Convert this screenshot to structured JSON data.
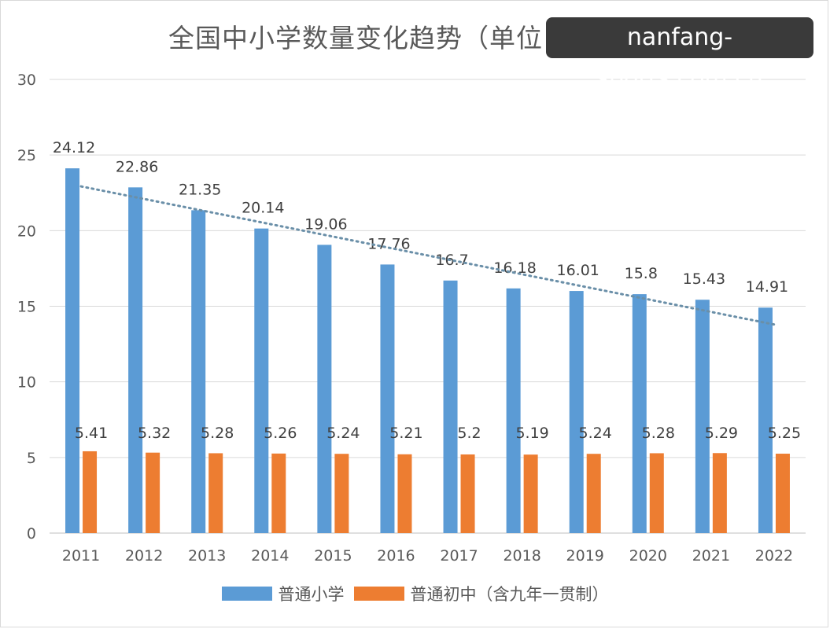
{
  "watermark": "nanfang-sports.com.cn",
  "chart_data": {
    "type": "bar",
    "title": "全国中小学数量变化趋势（单位：万所）",
    "categories": [
      "2011",
      "2012",
      "2013",
      "2014",
      "2015",
      "2016",
      "2017",
      "2018",
      "2019",
      "2020",
      "2021",
      "2022"
    ],
    "series": [
      {
        "name": "普通小学",
        "color": "#5b9bd5",
        "values": [
          24.12,
          22.86,
          21.35,
          20.14,
          19.06,
          17.76,
          16.7,
          16.18,
          16.01,
          15.8,
          15.43,
          14.91
        ],
        "labels": [
          "24.12",
          "22.86",
          "21.35",
          "20.14",
          "19.06",
          "17.76",
          "16.7",
          "16.18",
          "16.01",
          "15.8",
          "15.43",
          "14.91"
        ]
      },
      {
        "name": "普通初中（含九年一贯制）",
        "color": "#ed7d31",
        "values": [
          5.41,
          5.32,
          5.28,
          5.26,
          5.24,
          5.21,
          5.2,
          5.19,
          5.24,
          5.28,
          5.29,
          5.25
        ],
        "labels": [
          "5.41",
          "5.32",
          "5.28",
          "5.26",
          "5.24",
          "5.21",
          "5.2",
          "5.19",
          "5.24",
          "5.28",
          "5.29",
          "5.25"
        ]
      }
    ],
    "trendline": {
      "series": "普通小学",
      "type": "linear",
      "style": "dotted",
      "color": "#6a8fa8"
    },
    "ylim": [
      0,
      30
    ],
    "yticks": [
      0,
      5,
      10,
      15,
      20,
      25,
      30
    ],
    "grid": true,
    "legend": "bottom"
  }
}
